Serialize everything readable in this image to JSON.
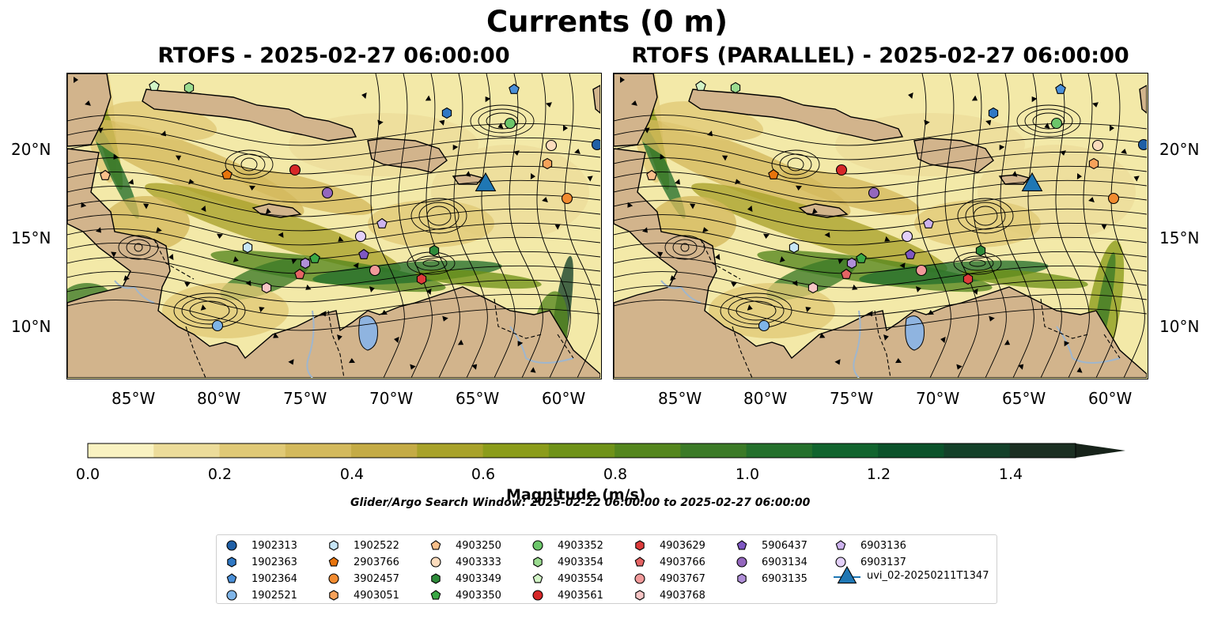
{
  "figure": {
    "suptitle": "Currents (0 m)",
    "panels": [
      {
        "title": "RTOFS - 2025-02-27 06:00:00"
      },
      {
        "title": "RTOFS (PARALLEL) - 2025-02-27 06:00:00"
      }
    ],
    "lon_ticks": [
      "85°W",
      "80°W",
      "75°W",
      "70°W",
      "65°W",
      "60°W"
    ],
    "lat_ticks": [
      "20°N",
      "15°N",
      "10°N"
    ],
    "colorbar": {
      "label": "Magnitude (m/s)",
      "ticks": [
        "0.0",
        "0.2",
        "0.4",
        "0.6",
        "0.8",
        "1.0",
        "1.2",
        "1.4"
      ],
      "range": [
        0.0,
        1.5
      ],
      "extend": "max",
      "colors": [
        "#f9f2c1",
        "#ecdc9a",
        "#e0c976",
        "#d3b95c",
        "#c4ab45",
        "#a8a22a",
        "#8b9c1a",
        "#6f9218",
        "#54861d",
        "#3b7a27",
        "#24702c",
        "#11642e",
        "#0b522a",
        "#134029",
        "#1b2f22",
        "#17231a"
      ]
    },
    "search_window": "Glider/Argo Search Window: 2025-02-22 06:00:00 to 2025-02-27 06:00:00",
    "colors": {
      "land": "#d2b48c",
      "ocean_base": "#f3e9a8",
      "river": "#9fb6cd",
      "lake": "#8fb4e0"
    }
  },
  "legend": {
    "columns": [
      [
        {
          "label": "1902313",
          "marker": "circle",
          "color": "#1f5fa6"
        },
        {
          "label": "1902363",
          "marker": "hexagon",
          "color": "#2f78c4"
        },
        {
          "label": "1902364",
          "marker": "pentagon",
          "color": "#4a90d9"
        },
        {
          "label": "1902521",
          "marker": "circle",
          "color": "#7fb5e8"
        }
      ],
      [
        {
          "label": "1902522",
          "marker": "hexagon",
          "color": "#c7e6f7"
        },
        {
          "label": "2903766",
          "marker": "pentagon",
          "color": "#e8740c"
        },
        {
          "label": "3902457",
          "marker": "circle",
          "color": "#f28b30"
        },
        {
          "label": "4903051",
          "marker": "hexagon",
          "color": "#f7a25a"
        }
      ],
      [
        {
          "label": "4903250",
          "marker": "pentagon",
          "color": "#f9bf8a"
        },
        {
          "label": "4903333",
          "marker": "circle",
          "color": "#fcdcbd"
        },
        {
          "label": "4903349",
          "marker": "hexagon",
          "color": "#2e8b3a"
        },
        {
          "label": "4903350",
          "marker": "pentagon",
          "color": "#3aa845"
        }
      ],
      [
        {
          "label": "4903352",
          "marker": "circle",
          "color": "#6cc66a"
        },
        {
          "label": "4903354",
          "marker": "hexagon",
          "color": "#9bdc90"
        },
        {
          "label": "4903554",
          "marker": "pentagon",
          "color": "#d3f5c7"
        },
        {
          "label": "4903561",
          "marker": "circle",
          "color": "#d62728"
        }
      ],
      [
        {
          "label": "4903629",
          "marker": "hexagon",
          "color": "#de3b3b"
        },
        {
          "label": "4903766",
          "marker": "pentagon",
          "color": "#e56464"
        },
        {
          "label": "4903767",
          "marker": "circle",
          "color": "#f29a9a"
        },
        {
          "label": "4903768",
          "marker": "hexagon",
          "color": "#f8c6c6"
        }
      ],
      [
        {
          "label": "5906437",
          "marker": "pentagon",
          "color": "#7e57c2"
        },
        {
          "label": "6903134",
          "marker": "circle",
          "color": "#9467bd"
        },
        {
          "label": "6903135",
          "marker": "hexagon",
          "color": "#b08fd8"
        }
      ],
      [
        {
          "label": "6903136",
          "marker": "pentagon",
          "color": "#cdb3ee"
        },
        {
          "label": "6903137",
          "marker": "circle",
          "color": "#e3d0f9"
        },
        {
          "label": "uvi_02-20250211T1347",
          "marker": "triangle",
          "color": "#1f77b4"
        }
      ]
    ]
  }
}
